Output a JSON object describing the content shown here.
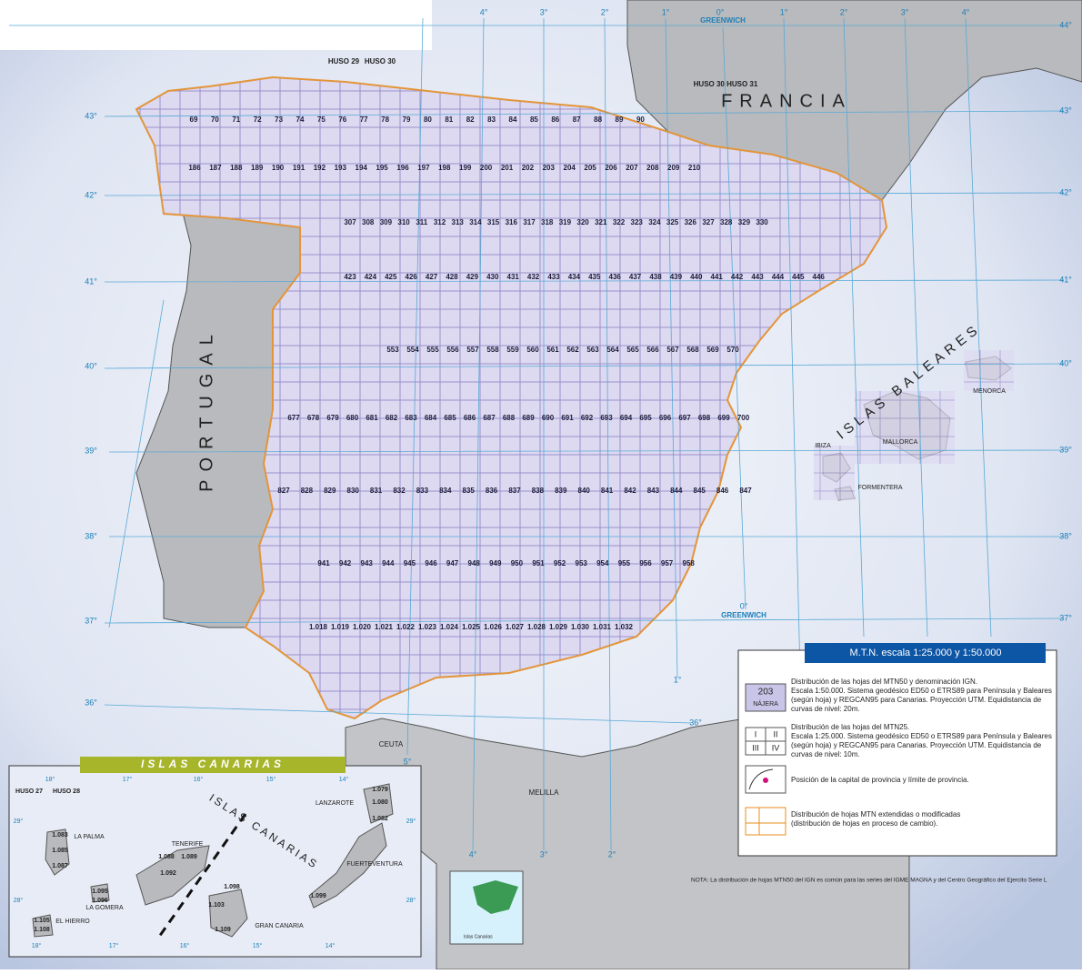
{
  "graticule": {
    "top": [
      "4°",
      "3°",
      "2°",
      "1°",
      "0°",
      "1°",
      "2°",
      "3°",
      "4°"
    ],
    "left": [
      "43°",
      "42°",
      "41°",
      "40°",
      "39°",
      "38°",
      "37°",
      "36°"
    ],
    "right": [
      "44°",
      "43°",
      "42°",
      "41°",
      "40°",
      "39°",
      "38°",
      "37°"
    ],
    "bottom": [
      "4°",
      "3°",
      "2°",
      "1°",
      "36°",
      "5°",
      "0°"
    ]
  },
  "places": [
    "GREENWICH",
    "GREENWICH",
    "HUSO 29",
    "HUSO 30",
    "HUSO 30  HUSO 31",
    "FRANCIA",
    "PORTUGAL",
    "ISLAS BALEARES",
    "MALLORCA",
    "MENORCA",
    "IBIZA",
    "FORMENTERA",
    "CEUTA",
    "MELILLA"
  ],
  "sheets": {
    "rows": [
      [
        "69",
        "70",
        "71",
        "72",
        "73",
        "74",
        "75",
        "76",
        "77",
        "78",
        "79",
        "80",
        "81",
        "82",
        "83",
        "84",
        "85",
        "86",
        "87",
        "88",
        "89",
        "90"
      ],
      [
        "186",
        "187",
        "188",
        "189",
        "190",
        "191",
        "192",
        "193",
        "194",
        "195",
        "196",
        "197",
        "198",
        "199",
        "200",
        "201",
        "202",
        "203",
        "204",
        "205",
        "206",
        "207",
        "208",
        "209",
        "210"
      ],
      [
        "307",
        "308",
        "309",
        "310",
        "311",
        "312",
        "313",
        "314",
        "315",
        "316",
        "317",
        "318",
        "319",
        "320",
        "321",
        "322",
        "323",
        "324",
        "325",
        "326",
        "327",
        "328",
        "329",
        "330"
      ],
      [
        "423",
        "424",
        "425",
        "426",
        "427",
        "428",
        "429",
        "430",
        "431",
        "432",
        "433",
        "434",
        "435",
        "436",
        "437",
        "438",
        "439",
        "440",
        "441",
        "442",
        "443",
        "444",
        "445",
        "446"
      ],
      [
        "553",
        "554",
        "555",
        "556",
        "557",
        "558",
        "559",
        "560",
        "561",
        "562",
        "563",
        "564",
        "565",
        "566",
        "567",
        "568",
        "569",
        "570"
      ],
      [
        "677",
        "678",
        "679",
        "680",
        "681",
        "682",
        "683",
        "684",
        "685",
        "686",
        "687",
        "688",
        "689",
        "690",
        "691",
        "692",
        "693",
        "694",
        "695",
        "696",
        "697",
        "698",
        "699",
        "700"
      ],
      [
        "827",
        "828",
        "829",
        "830",
        "831",
        "832",
        "833",
        "834",
        "835",
        "836",
        "837",
        "838",
        "839",
        "840",
        "841",
        "842",
        "843",
        "844",
        "845",
        "846",
        "847"
      ],
      [
        "941",
        "942",
        "943",
        "944",
        "945",
        "946",
        "947",
        "948",
        "949",
        "950",
        "951",
        "952",
        "953",
        "954",
        "955",
        "956",
        "957",
        "958"
      ],
      [
        "1.018",
        "1.019",
        "1.020",
        "1.021",
        "1.022",
        "1.023",
        "1.024",
        "1.025",
        "1.026",
        "1.027",
        "1.028",
        "1.029",
        "1.030",
        "1.031",
        "1.032"
      ]
    ]
  },
  "legend": {
    "title": "M.T.N.    escala 1:25.000 y 1:50.000",
    "symbol_sheet": [
      "203",
      "NÁJERA"
    ],
    "symbol_quarters": [
      "I",
      "II",
      "III",
      "IV"
    ],
    "items": [
      [
        "Distribución de las hojas del MTN50 y denominación IGN.",
        "Escala 1:50.000. Sistema geodésico ED50 o ETRS89 para Península y Baleares",
        "(según hoja) y REGCAN95 para Canarias. Proyección UTM. Equidistancia de",
        "curvas de nivel: 20m."
      ],
      [
        "Distribución de las hojas del MTN25.",
        "Escala 1:25.000. Sistema geodésico ED50 o ETRS89 para Península y Baleares",
        "(según hoja) y REGCAN95 para Canarias. Proyección UTM. Equidistancia de",
        "curvas de nivel: 10m."
      ],
      [
        "Posición de la capital de provincia y límite de provincia."
      ],
      [
        "Distribución de hojas MTN extendidas o modificadas",
        "(distribución de hojas en proceso de cambio)."
      ]
    ]
  },
  "note": "NOTA:    La distribución de hojas MTN50 del IGN es común para las series  del IGME MAGNA y del Centro Geográfico del Ejercito Serie L",
  "canarias": {
    "title": "ISLAS CANARIAS",
    "labels": [
      "HUSO 27",
      "HUSO 28",
      "LANZAROTE",
      "LA PALMA",
      "TENERIFE",
      "LA GOMERA",
      "EL HIERRO",
      "GRAN CANARIA",
      "FUERTEVENTURA",
      "ISLAS CANARIAS"
    ],
    "top": [
      "18°",
      "17°",
      "16°",
      "15°",
      "14°"
    ],
    "bottom": [
      "18°",
      "17°",
      "16°",
      "15°",
      "14°"
    ],
    "side": [
      "29°",
      "28°",
      "29°",
      "28°"
    ],
    "sheets": [
      "1.079",
      "1.080",
      "1.082",
      "1.083",
      "1.085",
      "1.087",
      "1.088",
      "1.089",
      "1.092",
      "1.095",
      "1.096",
      "1.098",
      "1.099",
      "1.103",
      "1.105",
      "1.108",
      "1.109"
    ]
  },
  "locator": {
    "label": "Islas Canarias"
  }
}
